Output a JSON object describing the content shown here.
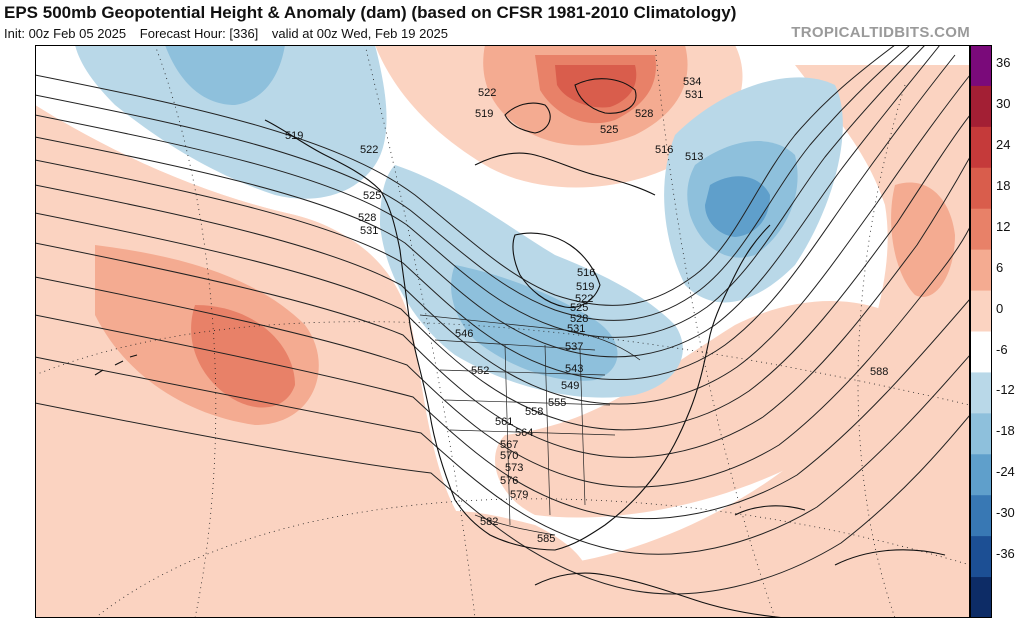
{
  "header": {
    "title": "EPS 500mb Geopotential Height & Anomaly (dam) (based on CFSR 1981-2010 Climatology)",
    "init": "Init: 00z Feb 05 2025",
    "forecast_hour": "Forecast Hour: [336]",
    "valid": "valid at 00z Wed, Feb 19 2025",
    "brand": "TROPICALTIDBITS.COM"
  },
  "colorbar": {
    "ticks": [
      "36",
      "30",
      "24",
      "18",
      "12",
      "6",
      "0",
      "-6",
      "-12",
      "-18",
      "-24",
      "-30",
      "-36"
    ],
    "colors": [
      "#7a0a7a",
      "#a31f34",
      "#c53a3a",
      "#d95d4c",
      "#e88168",
      "#f4ab91",
      "#fbd3c1",
      "#ffffff",
      "#b9d8e8",
      "#8ec0dc",
      "#5f9fcb",
      "#3878b4",
      "#1c4f94",
      "#0d2c66"
    ]
  },
  "contours": {
    "labels": [
      "534",
      "531",
      "528",
      "525",
      "522",
      "519",
      "516",
      "513",
      "519",
      "522",
      "525",
      "528",
      "531",
      "546",
      "552",
      "543",
      "549",
      "555",
      "558",
      "561",
      "564",
      "567",
      "570",
      "573",
      "576",
      "579",
      "582",
      "585",
      "588",
      "516",
      "519",
      "522",
      "525",
      "528",
      "531",
      "537"
    ]
  }
}
